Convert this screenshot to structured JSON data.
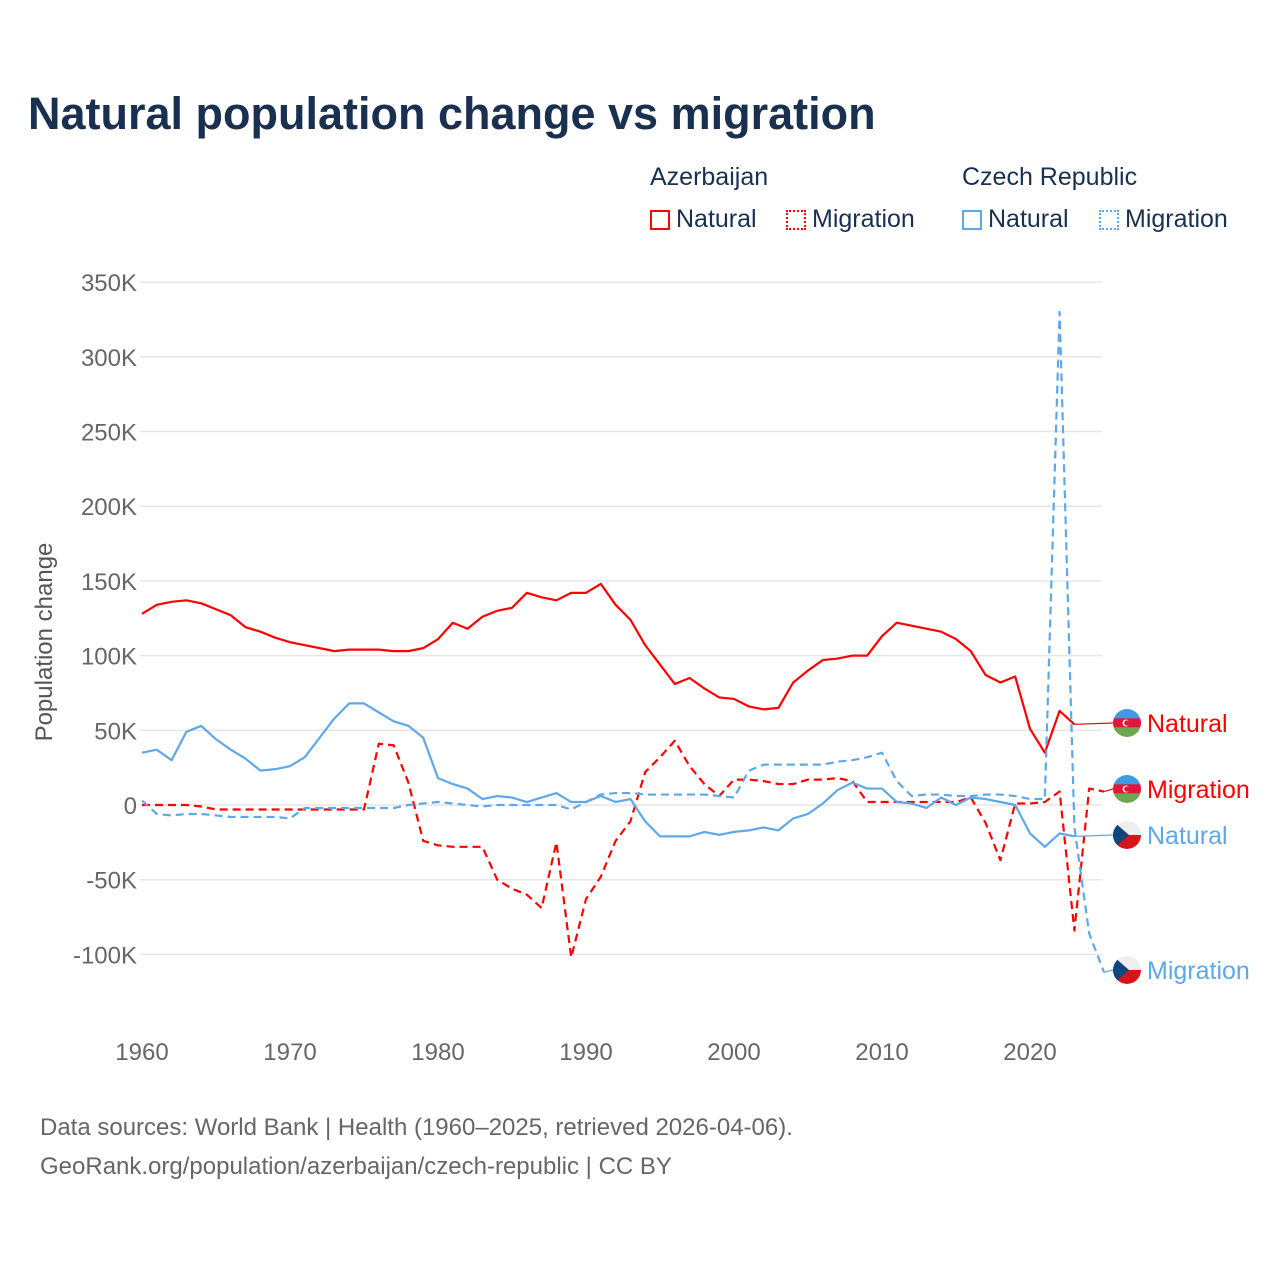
{
  "title": "Natural population change vs migration",
  "legend": {
    "groups": [
      {
        "name": "Azerbaijan",
        "color": "#ff0000",
        "items": [
          "Natural",
          "Migration"
        ]
      },
      {
        "name": "Czech Republic",
        "color": "#5ea8ea",
        "items": [
          "Natural",
          "Migration"
        ]
      }
    ]
  },
  "source": [
    "Data sources: World Bank | Health (1960–2025, retrieved 2026-04-06).",
    "GeoRank.org/population/azerbaijan/czech-republic | CC BY"
  ],
  "chart_data": {
    "type": "line",
    "title": "Natural population change vs migration",
    "xlabel": "",
    "ylabel": "Population change",
    "xlim": [
      1960,
      2025
    ],
    "ylim": [
      -125000,
      350000
    ],
    "xticks": [
      1960,
      1970,
      1980,
      1990,
      2000,
      2010,
      2020
    ],
    "xtick_labels": [
      "1960",
      "1970",
      "1980",
      "1990",
      "2000",
      "2010",
      "2020"
    ],
    "yticks": [
      -100000,
      -50000,
      0,
      50000,
      100000,
      150000,
      200000,
      250000,
      300000,
      350000
    ],
    "ytick_labels": [
      "-100K",
      "-50K",
      "0",
      "50K",
      "100K",
      "150K",
      "200K",
      "250K",
      "300K",
      "350K"
    ],
    "grid": true,
    "legend_position": "top-right",
    "series": [
      {
        "name": "Azerbaijan Natural",
        "country": "Azerbaijan",
        "kind": "Natural",
        "color": "#ff0000",
        "dash": false,
        "start": 1960,
        "end_label": "Natural",
        "values": [
          128,
          134,
          136,
          137,
          135,
          131,
          127,
          119,
          116,
          112,
          109,
          107,
          105,
          103,
          104,
          104,
          104,
          103,
          103,
          105,
          111,
          122,
          118,
          126,
          130,
          132,
          142,
          139,
          137,
          142,
          142,
          148,
          134,
          124,
          107,
          94,
          81,
          85,
          78,
          72,
          71,
          66,
          64,
          65,
          82,
          90,
          97,
          98,
          100,
          100,
          113,
          122,
          120,
          118,
          116,
          111,
          103,
          87,
          82,
          86,
          51,
          35,
          63,
          54
        ]
      },
      {
        "name": "Azerbaijan Migration",
        "country": "Azerbaijan",
        "kind": "Migration",
        "color": "#ff0000",
        "dash": true,
        "start": 1960,
        "end_label": "Migration",
        "values": [
          0,
          0,
          0,
          0,
          -1,
          -3,
          -3,
          -3,
          -3,
          -3,
          -3,
          -3,
          -3,
          -3,
          -3,
          -3,
          41,
          40,
          15,
          -24,
          -27,
          -28,
          -28,
          -28,
          -50,
          -56,
          -60,
          -69,
          -25,
          -102,
          -63,
          -48,
          -24,
          -11,
          22,
          32,
          43,
          26,
          14,
          6,
          17,
          17,
          16,
          14,
          14,
          17,
          17,
          18,
          16,
          2,
          2,
          2,
          2,
          2,
          2,
          2,
          5,
          -12,
          -37,
          1,
          1,
          2,
          9,
          -84,
          11,
          9
        ]
      },
      {
        "name": "Czech Republic Natural",
        "country": "Czech Republic",
        "kind": "Natural",
        "color": "#5ea8ea",
        "dash": false,
        "start": 1960,
        "end_label": "Natural",
        "values": [
          35,
          37,
          30,
          49,
          53,
          44,
          37,
          31,
          23,
          24,
          26,
          32,
          45,
          58,
          68,
          68,
          62,
          56,
          53,
          45,
          18,
          14,
          11,
          4,
          6,
          5,
          2,
          5,
          8,
          2,
          2,
          6,
          2,
          4,
          -11,
          -21,
          -21,
          -21,
          -18,
          -20,
          -18,
          -17,
          -15,
          -17,
          -9,
          -6,
          1,
          10,
          15,
          11,
          11,
          2,
          1,
          -2,
          5,
          0,
          5,
          4,
          2,
          0,
          -19,
          -28,
          -19,
          -21
        ]
      },
      {
        "name": "Czech Republic Migration",
        "country": "Czech Republic",
        "kind": "Migration",
        "color": "#5ea8ea",
        "dash": true,
        "start": 1960,
        "end_label": "Migration",
        "values": [
          3,
          -6,
          -7,
          -6,
          -6,
          -7,
          -8,
          -8,
          -8,
          -8,
          -9,
          -2,
          -2,
          -2,
          -2,
          -2,
          -2,
          -2,
          0,
          1,
          2,
          1,
          0,
          -1,
          0,
          0,
          0,
          0,
          0,
          -3,
          2,
          7,
          8,
          8,
          7,
          7,
          7,
          7,
          7,
          6,
          5,
          23,
          27,
          27,
          27,
          27,
          27,
          29,
          30,
          32,
          35,
          16,
          6,
          7,
          7,
          6,
          6,
          7,
          7,
          6,
          4,
          4,
          330,
          -15,
          -86,
          -112
        ]
      }
    ],
    "value_unit": "thousands"
  }
}
